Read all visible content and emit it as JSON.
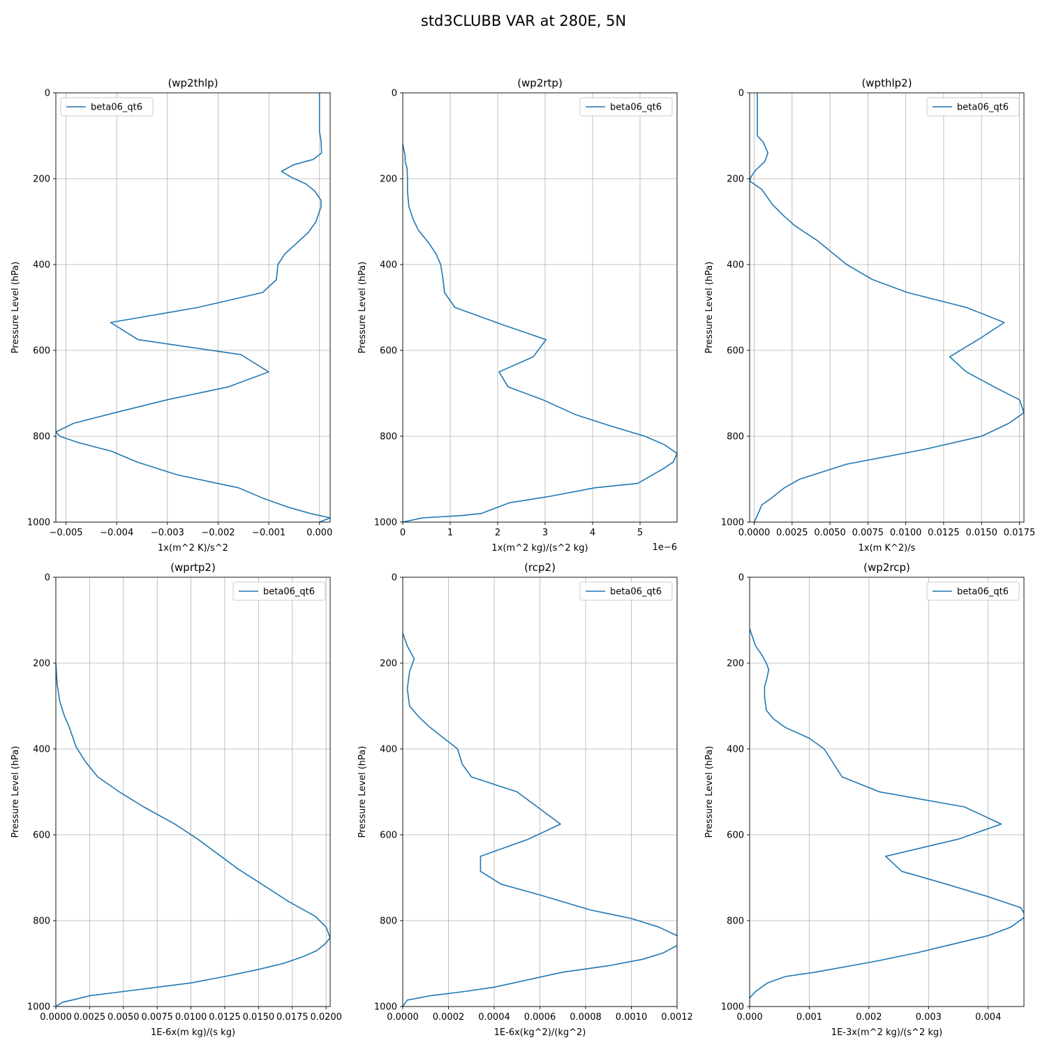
{
  "figure": {
    "suptitle": "std3CLUBB VAR at 280E, 5N",
    "line_color": "#1f77b4",
    "grid_color": "#b0b0b0",
    "legend_label": "beta06_qt6"
  },
  "chart_data": [
    {
      "type": "line",
      "title": "(wp2thlp)",
      "xlabel": "1x(m^2 K)/s^2",
      "ylabel": "Pressure Level (hPa)",
      "xlim": [
        -0.0052,
        0.00021
      ],
      "ylim": [
        1000,
        0
      ],
      "xticks": [
        -0.005,
        -0.004,
        -0.003,
        -0.002,
        -0.001,
        0.0
      ],
      "xtick_labels": [
        "−0.005",
        "−0.004",
        "−0.003",
        "−0.002",
        "−0.001",
        "0.000"
      ],
      "yticks": [
        0,
        200,
        400,
        600,
        800,
        1000
      ],
      "ytick_labels": [
        "0",
        "200",
        "400",
        "600",
        "800",
        "1000"
      ],
      "offset_label": "",
      "legend": "top-left",
      "series": [
        {
          "name": "beta06_qt6",
          "x": [
            0.0,
            0.0,
            0.0,
            3e-05,
            4e-05,
            -0.00012,
            -0.00052,
            -0.00075,
            -0.00055,
            -0.00027,
            -0.0001,
            3e-05,
            3e-05,
            -7e-05,
            -0.00022,
            -0.00045,
            -0.00068,
            -0.00082,
            -0.00085,
            -0.00112,
            -0.0024,
            -0.00412,
            -0.00358,
            -0.00155,
            -0.001,
            -0.0018,
            -0.003,
            -0.00403,
            -0.00485,
            -0.0052,
            -0.00512,
            -0.00475,
            -0.0041,
            -0.0036,
            -0.0028,
            -0.0016,
            -0.0011,
            -0.00062,
            -0.00018,
            0.00021,
            0.0
          ],
          "y": [
            0,
            50,
            90,
            110,
            140,
            155,
            168,
            183,
            197,
            212,
            228,
            250,
            265,
            300,
            325,
            350,
            375,
            400,
            435,
            465,
            500,
            535,
            575,
            610,
            650,
            685,
            715,
            745,
            770,
            790,
            800,
            815,
            835,
            860,
            890,
            920,
            945,
            965,
            980,
            990,
            1000
          ]
        }
      ]
    },
    {
      "type": "line",
      "title": "(wp2rtp)",
      "xlabel": "1x(m^2 kg)/(s^2 kg)",
      "ylabel": "Pressure Level (hPa)",
      "xlim": [
        0,
        5.78
      ],
      "ylim": [
        1000,
        0
      ],
      "xticks": [
        0,
        1,
        2,
        3,
        4,
        5
      ],
      "xtick_labels": [
        "0",
        "1",
        "2",
        "3",
        "4",
        "5"
      ],
      "yticks": [
        0,
        200,
        400,
        600,
        800,
        1000
      ],
      "ytick_labels": [
        "0",
        "200",
        "400",
        "600",
        "800",
        "1000"
      ],
      "offset_label": "1e−6",
      "legend": "top-right",
      "series": [
        {
          "name": "beta06_qt6",
          "x": [
            0.0,
            0.03,
            0.05,
            0.05,
            0.09,
            0.1,
            0.1,
            0.13,
            0.22,
            0.33,
            0.55,
            0.7,
            0.8,
            0.85,
            0.88,
            1.1,
            2.1,
            3.02,
            2.75,
            2.03,
            2.22,
            2.95,
            3.65,
            4.35,
            5.1,
            5.52,
            5.78,
            5.7,
            5.5,
            4.95,
            4.05,
            3.1,
            2.25,
            1.65,
            1.2,
            0.42,
            0.0
          ],
          "y": [
            120,
            135,
            145,
            160,
            175,
            200,
            230,
            265,
            295,
            320,
            350,
            375,
            400,
            435,
            465,
            500,
            540,
            575,
            615,
            650,
            685,
            715,
            750,
            775,
            800,
            820,
            840,
            860,
            875,
            910,
            920,
            940,
            955,
            980,
            985,
            990,
            1000
          ]
        }
      ]
    },
    {
      "type": "line",
      "title": "(wpthlp2)",
      "xlabel": "1x(m K^2)/s",
      "ylabel": "Pressure Level (hPa)",
      "xlim": [
        -0.0003,
        0.0178
      ],
      "ylim": [
        1000,
        0
      ],
      "xticks": [
        0.0,
        0.0025,
        0.005,
        0.0075,
        0.01,
        0.0125,
        0.015,
        0.0175
      ],
      "xtick_labels": [
        "0.0000",
        "0.0025",
        "0.0050",
        "0.0075",
        "0.0100",
        "0.0125",
        "0.0150",
        "0.0175"
      ],
      "yticks": [
        0,
        200,
        400,
        600,
        800,
        1000
      ],
      "ytick_labels": [
        "0",
        "200",
        "400",
        "600",
        "800",
        "1000"
      ],
      "offset_label": "",
      "legend": "top-right",
      "series": [
        {
          "name": "beta06_qt6",
          "x": [
            0.0002,
            0.0002,
            0.0002,
            0.0006,
            0.0009,
            0.0007,
            0.0001,
            -0.0002,
            -0.0003,
            0.0005,
            0.0012,
            0.0019,
            0.0027,
            0.0042,
            0.0061,
            0.0078,
            0.0101,
            0.014,
            0.0165,
            0.015,
            0.0129,
            0.014,
            0.0161,
            0.0175,
            0.0178,
            0.0168,
            0.015,
            0.0113,
            0.0061,
            0.003,
            0.002,
            0.0011,
            0.0005,
            0.0002,
            0.0
          ],
          "y": [
            0,
            50,
            100,
            115,
            140,
            160,
            180,
            195,
            205,
            225,
            260,
            285,
            310,
            345,
            400,
            435,
            465,
            500,
            535,
            570,
            615,
            650,
            690,
            715,
            745,
            770,
            800,
            830,
            865,
            900,
            920,
            945,
            960,
            985,
            1000
          ]
        }
      ]
    },
    {
      "type": "line",
      "title": "(wprtp2)",
      "xlabel": "1E-6x(m kg)/(s kg)",
      "ylabel": "Pressure Level (hPa)",
      "xlim": [
        0,
        0.0203
      ],
      "ylim": [
        1000,
        0
      ],
      "xticks": [
        0.0,
        0.0025,
        0.005,
        0.0075,
        0.01,
        0.0125,
        0.015,
        0.0175,
        0.02
      ],
      "xtick_labels": [
        "0.0000",
        "0.0025",
        "0.0050",
        "0.0075",
        "0.0100",
        "0.0125",
        "0.0150",
        "0.0175",
        "0.0200"
      ],
      "yticks": [
        0,
        200,
        400,
        600,
        800,
        1000
      ],
      "ytick_labels": [
        "0",
        "200",
        "400",
        "600",
        "800",
        "1000"
      ],
      "offset_label": "",
      "legend": "top-right",
      "series": [
        {
          "name": "beta06_qt6",
          "x": [
            0.0,
            0.0001,
            0.0003,
            0.0006,
            0.001,
            0.0015,
            0.0022,
            0.0031,
            0.0047,
            0.0065,
            0.0088,
            0.0105,
            0.012,
            0.0135,
            0.015,
            0.0172,
            0.0192,
            0.02,
            0.0203,
            0.0199,
            0.0193,
            0.0182,
            0.0168,
            0.0148,
            0.0125,
            0.01,
            0.0075,
            0.005,
            0.0025,
            0.0012,
            0.0005,
            0.0
          ],
          "y": [
            200,
            250,
            290,
            320,
            350,
            395,
            430,
            465,
            500,
            535,
            575,
            610,
            645,
            680,
            710,
            755,
            790,
            815,
            840,
            855,
            870,
            885,
            900,
            915,
            930,
            945,
            955,
            965,
            975,
            985,
            990,
            1000
          ]
        }
      ]
    },
    {
      "type": "line",
      "title": "(rcp2)",
      "xlabel": "1E-6x(kg^2)/(kg^2)",
      "ylabel": "Pressure Level (hPa)",
      "xlim": [
        0,
        0.0012
      ],
      "ylim": [
        1000,
        0
      ],
      "xticks": [
        0.0,
        0.0002,
        0.0004,
        0.0006,
        0.0008,
        0.001,
        0.0012
      ],
      "xtick_labels": [
        "0.0000",
        "0.0002",
        "0.0004",
        "0.0006",
        "0.0008",
        "0.0010",
        "0.0012"
      ],
      "yticks": [
        0,
        200,
        400,
        600,
        800,
        1000
      ],
      "ytick_labels": [
        "0",
        "200",
        "400",
        "600",
        "800",
        "1000"
      ],
      "offset_label": "",
      "legend": "top-right",
      "series": [
        {
          "name": "beta06_qt6",
          "x": [
            0.0,
            2e-05,
            5e-05,
            3e-05,
            2e-05,
            3e-05,
            7e-05,
            0.00012,
            0.00018,
            0.00024,
            0.00026,
            0.0003,
            0.0005,
            0.00069,
            0.00055,
            0.00034,
            0.00034,
            0.00043,
            0.0006,
            0.00082,
            0.001,
            0.00112,
            0.0012,
            0.00121,
            0.00114,
            0.00105,
            0.0009,
            0.0007,
            0.0004,
            0.00027,
            0.00012,
            2e-05,
            0.0
          ],
          "y": [
            130,
            160,
            190,
            220,
            260,
            300,
            325,
            350,
            375,
            400,
            435,
            465,
            500,
            575,
            610,
            650,
            685,
            715,
            740,
            775,
            795,
            815,
            835,
            855,
            875,
            890,
            905,
            920,
            955,
            965,
            975,
            985,
            1000
          ]
        }
      ]
    },
    {
      "type": "line",
      "title": "(wp2rcp)",
      "xlabel": "1E-3x(m^2 kg)/(s^2 kg)",
      "ylabel": "Pressure Level (hPa)",
      "xlim": [
        0,
        0.0046
      ],
      "ylim": [
        1000,
        0
      ],
      "xticks": [
        0.0,
        0.001,
        0.002,
        0.003,
        0.004
      ],
      "xtick_labels": [
        "0.000",
        "0.001",
        "0.002",
        "0.003",
        "0.004"
      ],
      "yticks": [
        0,
        200,
        400,
        600,
        800,
        1000
      ],
      "ytick_labels": [
        "0",
        "200",
        "400",
        "600",
        "800",
        "1000"
      ],
      "offset_label": "",
      "legend": "top-right",
      "series": [
        {
          "name": "beta06_qt6",
          "x": [
            0.0,
            0.0001,
            0.0002,
            0.00028,
            0.00032,
            0.00029,
            0.00025,
            0.00025,
            0.00028,
            0.0004,
            0.0006,
            0.001,
            0.00125,
            0.00155,
            0.00218,
            0.0036,
            0.00422,
            0.0035,
            0.00228,
            0.00255,
            0.0033,
            0.00402,
            0.00455,
            0.00463,
            0.00438,
            0.004,
            0.0034,
            0.0028,
            0.0021,
            0.0011,
            0.0006,
            0.0003,
            0.0001,
            0.0
          ],
          "y": [
            120,
            160,
            180,
            200,
            215,
            235,
            255,
            280,
            310,
            330,
            350,
            375,
            400,
            465,
            500,
            535,
            575,
            610,
            650,
            685,
            715,
            745,
            770,
            790,
            815,
            835,
            855,
            875,
            895,
            920,
            930,
            945,
            965,
            980
          ]
        }
      ]
    }
  ]
}
